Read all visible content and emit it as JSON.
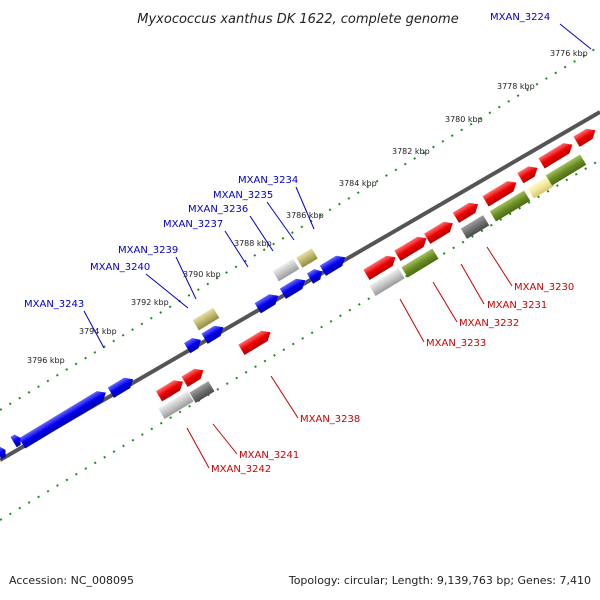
{
  "title": "Myxococcus xanthus DK 1622, complete genome",
  "footer": {
    "accession": "Accession: NC_008095",
    "summary": "Topology: circular; Length: 9,139,763 bp; Genes: 7,410"
  },
  "scale_labels": [
    "3776 kbp",
    "3778 kbp",
    "3780 kbp",
    "3782 kbp",
    "3784 kbp",
    "3786 kbp",
    "3788 kbp",
    "3790 kbp",
    "3792 kbp",
    "3794 kbp",
    "3796 kbp"
  ],
  "gene_labels": [
    {
      "name": "MXAN_3224",
      "color": "#0000cc"
    },
    {
      "name": "MXAN_3234",
      "color": "#0000cc"
    },
    {
      "name": "MXAN_3235",
      "color": "#0000cc"
    },
    {
      "name": "MXAN_3236",
      "color": "#0000cc"
    },
    {
      "name": "MXAN_3237",
      "color": "#0000cc"
    },
    {
      "name": "MXAN_3239",
      "color": "#0000cc"
    },
    {
      "name": "MXAN_3240",
      "color": "#0000cc"
    },
    {
      "name": "MXAN_3243",
      "color": "#0000cc"
    },
    {
      "name": "MXAN_3230",
      "color": "#cc0000"
    },
    {
      "name": "MXAN_3231",
      "color": "#cc0000"
    },
    {
      "name": "MXAN_3232",
      "color": "#cc0000"
    },
    {
      "name": "MXAN_3233",
      "color": "#cc0000"
    },
    {
      "name": "MXAN_3238",
      "color": "#cc0000"
    },
    {
      "name": "MXAN_3241",
      "color": "#cc0000"
    },
    {
      "name": "MXAN_3242",
      "color": "#cc0000"
    }
  ],
  "colors": {
    "cds_forward": "#0000ee",
    "cds_reverse": "#ee0000",
    "track": "#228b22",
    "backbone": "#555555"
  }
}
